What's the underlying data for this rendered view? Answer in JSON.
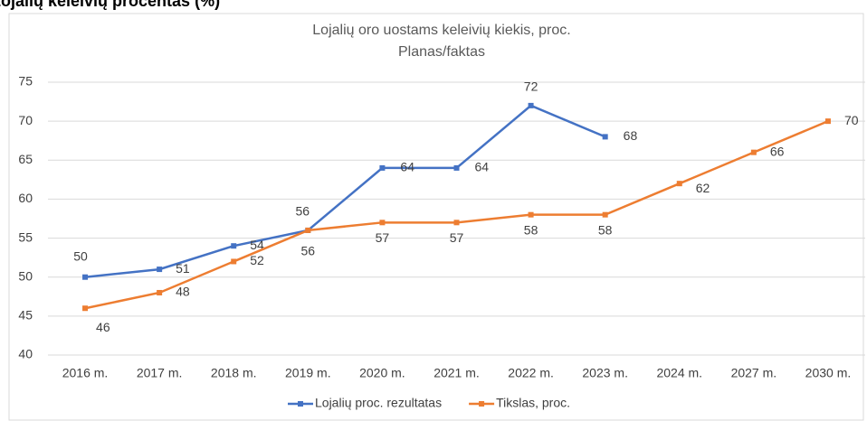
{
  "page_heading": "Lojalių keleivių procentas (%)",
  "chart_data": {
    "type": "line",
    "title": "Lojalių oro uostams keleivių kiekis, proc.",
    "subtitle": "Planas/faktas",
    "categories": [
      "2016 m.",
      "2017 m.",
      "2018 m.",
      "2019 m.",
      "2020 m.",
      "2021 m.",
      "2022 m.",
      "2023 m.",
      "2024 m.",
      "2027 m.",
      "2030 m."
    ],
    "series": [
      {
        "name": "Lojalių proc. rezultatas",
        "color": "#4472c4",
        "values": [
          50,
          51,
          54,
          56,
          64,
          64,
          72,
          68,
          null,
          null,
          null
        ]
      },
      {
        "name": "Tikslas, proc.",
        "color": "#ed7d31",
        "values": [
          46,
          48,
          52,
          56,
          57,
          57,
          58,
          58,
          62,
          66,
          70
        ]
      }
    ],
    "ylim": [
      40,
      75
    ],
    "yticks": [
      40,
      45,
      50,
      55,
      60,
      65,
      70,
      75
    ],
    "grid": true,
    "legend": "bottom"
  }
}
